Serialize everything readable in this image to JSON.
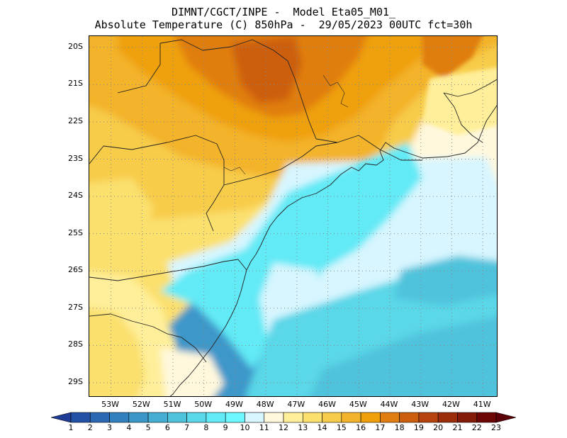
{
  "header": {
    "title_line1": "DIMNT/CGCT/INPE -  Model Eta05_M01_",
    "title_line2": "Absolute Temperature (C) 850hPa -  29/05/2023 00UTC fct=30h"
  },
  "map": {
    "lat_labels": [
      "20S",
      "21S",
      "22S",
      "23S",
      "24S",
      "25S",
      "26S",
      "27S",
      "28S",
      "29S"
    ],
    "lat_values": [
      -20,
      -21,
      -22,
      -23,
      -24,
      -25,
      -26,
      -27,
      -28,
      -29
    ],
    "lon_labels": [
      "53W",
      "52W",
      "51W",
      "50W",
      "49W",
      "48W",
      "47W",
      "46W",
      "45W",
      "44W",
      "43W",
      "42W",
      "41W"
    ],
    "lon_values": [
      -53,
      -52,
      -51,
      -50,
      -49,
      -48,
      -47,
      -46,
      -45,
      -44,
      -43,
      -42,
      -41
    ],
    "lon_range": [
      -53.7,
      -40.5
    ],
    "lat_range": [
      -29.4,
      -19.7
    ],
    "grid": "dotted"
  },
  "colorbar": {
    "labels": [
      "1",
      "2",
      "3",
      "4",
      "5",
      "6",
      "7",
      "8",
      "9",
      "10",
      "11",
      "12",
      "13",
      "14",
      "15",
      "16",
      "17",
      "18",
      "19",
      "20",
      "21",
      "22",
      "23"
    ],
    "colors": [
      "#1e3c96",
      "#2352a5",
      "#2b68b3",
      "#3380bf",
      "#3c97c9",
      "#45aed2",
      "#4fc3dc",
      "#5ad7e8",
      "#62eaf6",
      "#6ef8ff",
      "#d7f6ff",
      "#fff8dd",
      "#ffef9a",
      "#fbe06e",
      "#f7cc4a",
      "#f3b32a",
      "#efa00a",
      "#e07e10",
      "#cc5f0f",
      "#b5430d",
      "#9b2d0a",
      "#841a08",
      "#6c0705",
      "#5a0006"
    ]
  }
}
